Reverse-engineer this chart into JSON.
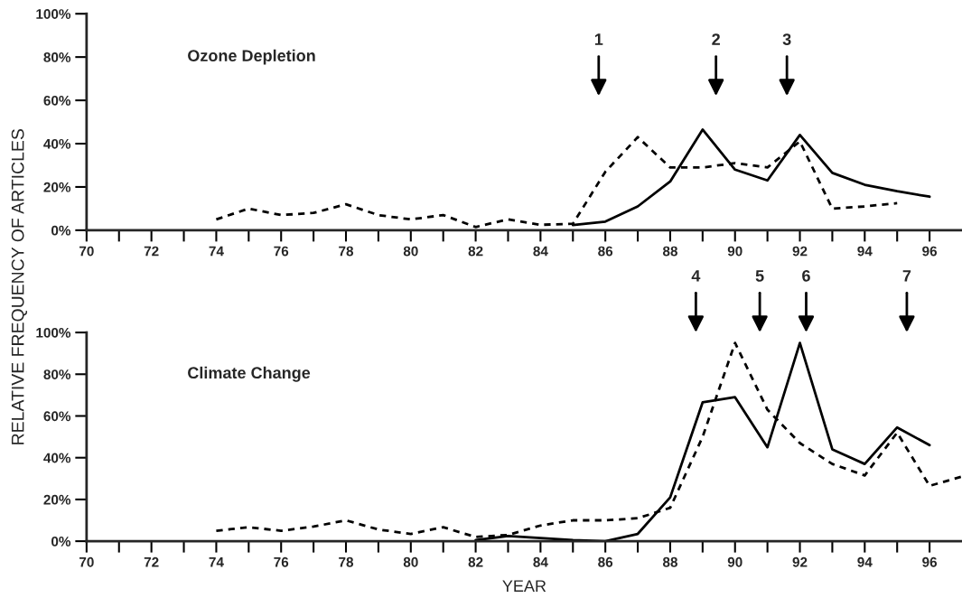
{
  "chart_data": [
    {
      "type": "line",
      "title": "Ozone Depletion",
      "ylabel": "RELATIVE FREQUENCY OF ARTICLES",
      "xlim": [
        70,
        97
      ],
      "ylim": [
        0,
        100
      ],
      "xticks": [
        70,
        {
          "value": 71,
          "label": null
        },
        72,
        {
          "value": 73,
          "label": null
        },
        74,
        {
          "value": 75,
          "label": null
        },
        76,
        {
          "value": 77,
          "label": null
        },
        78,
        {
          "value": 79,
          "label": null
        },
        80,
        {
          "value": 81,
          "label": null
        },
        82,
        {
          "value": 83,
          "label": null
        },
        84,
        {
          "value": 85,
          "label": null
        },
        86,
        {
          "value": 87,
          "label": null
        },
        88,
        {
          "value": 89,
          "label": null
        },
        90,
        {
          "value": 91,
          "label": null
        },
        92,
        {
          "value": 93,
          "label": null
        },
        94,
        {
          "value": 95,
          "label": null
        },
        96
      ],
      "yticks": [
        {
          "value": 0,
          "label": "0%"
        },
        {
          "value": 20,
          "label": "20%"
        },
        {
          "value": 40,
          "label": "40%"
        },
        {
          "value": 60,
          "label": "60%"
        },
        {
          "value": 80,
          "label": "80%"
        },
        {
          "value": 100,
          "label": "100%"
        }
      ],
      "grid": false,
      "legend": false,
      "series": [
        {
          "color": "#000000",
          "line_style": "dashed",
          "x": [
            74,
            75,
            76,
            77,
            78,
            79,
            80,
            81,
            82,
            83,
            84,
            85,
            86,
            87,
            88,
            89,
            90,
            91,
            92,
            93,
            94,
            95
          ],
          "values": [
            5,
            10,
            7,
            8,
            12,
            7,
            5,
            7,
            1.5,
            5,
            2.5,
            3,
            27,
            43,
            29,
            29,
            31,
            29,
            41,
            10,
            11,
            12.5
          ]
        },
        {
          "color": "#000000",
          "line_style": "solid",
          "x": [
            85,
            86,
            87,
            88,
            89,
            90,
            91,
            92,
            93,
            94,
            95,
            96
          ],
          "values": [
            2.4,
            4,
            11,
            22.5,
            46.5,
            28,
            23,
            44,
            26.5,
            21,
            18,
            15.5
          ]
        }
      ],
      "annotations": [
        "1",
        "2",
        "3"
      ]
    },
    {
      "type": "line",
      "title": "Climate Change",
      "xlabel": "YEAR",
      "xlim": [
        70,
        97
      ],
      "ylim": [
        0,
        100
      ],
      "xticks": [
        70,
        {
          "value": 71,
          "label": null
        },
        72,
        {
          "value": 73,
          "label": null
        },
        74,
        {
          "value": 75,
          "label": null
        },
        76,
        {
          "value": 77,
          "label": null
        },
        78,
        {
          "value": 79,
          "label": null
        },
        80,
        {
          "value": 81,
          "label": null
        },
        82,
        {
          "value": 83,
          "label": null
        },
        84,
        {
          "value": 85,
          "label": null
        },
        86,
        {
          "value": 87,
          "label": null
        },
        88,
        {
          "value": 89,
          "label": null
        },
        90,
        {
          "value": 91,
          "label": null
        },
        92,
        {
          "value": 93,
          "label": null
        },
        94,
        {
          "value": 95,
          "label": null
        },
        96
      ],
      "yticks": [
        {
          "value": 0,
          "label": "0%"
        },
        {
          "value": 20,
          "label": "20%"
        },
        {
          "value": 40,
          "label": "40%"
        },
        {
          "value": 60,
          "label": "60%"
        },
        {
          "value": 80,
          "label": "80%"
        },
        {
          "value": 100,
          "label": "100%"
        }
      ],
      "grid": false,
      "legend": false,
      "series": [
        {
          "color": "#000000",
          "line_style": "dashed",
          "x": [
            74,
            75,
            76,
            77,
            78,
            79,
            80,
            81,
            82,
            83,
            84,
            85,
            86,
            87,
            88,
            89,
            90,
            91,
            92,
            93,
            94,
            95,
            96,
            97
          ],
          "values": [
            5,
            6.7,
            5,
            7,
            10,
            5.6,
            3.5,
            6.7,
            2,
            3,
            7.5,
            10,
            10,
            11,
            16,
            50,
            95,
            63,
            47,
            37,
            31.5,
            52,
            26.5,
            31
          ]
        },
        {
          "color": "#000000",
          "line_style": "solid",
          "x": [
            82,
            83,
            84,
            85,
            86,
            87,
            88,
            89,
            90,
            91,
            92,
            93,
            94,
            95,
            96
          ],
          "values": [
            0.5,
            2.5,
            1.5,
            0.5,
            0,
            3.5,
            21,
            66.5,
            69,
            45,
            95,
            44,
            37,
            54.5,
            46
          ]
        }
      ],
      "annotations": [
        "4",
        "5",
        "6",
        "7"
      ]
    }
  ]
}
